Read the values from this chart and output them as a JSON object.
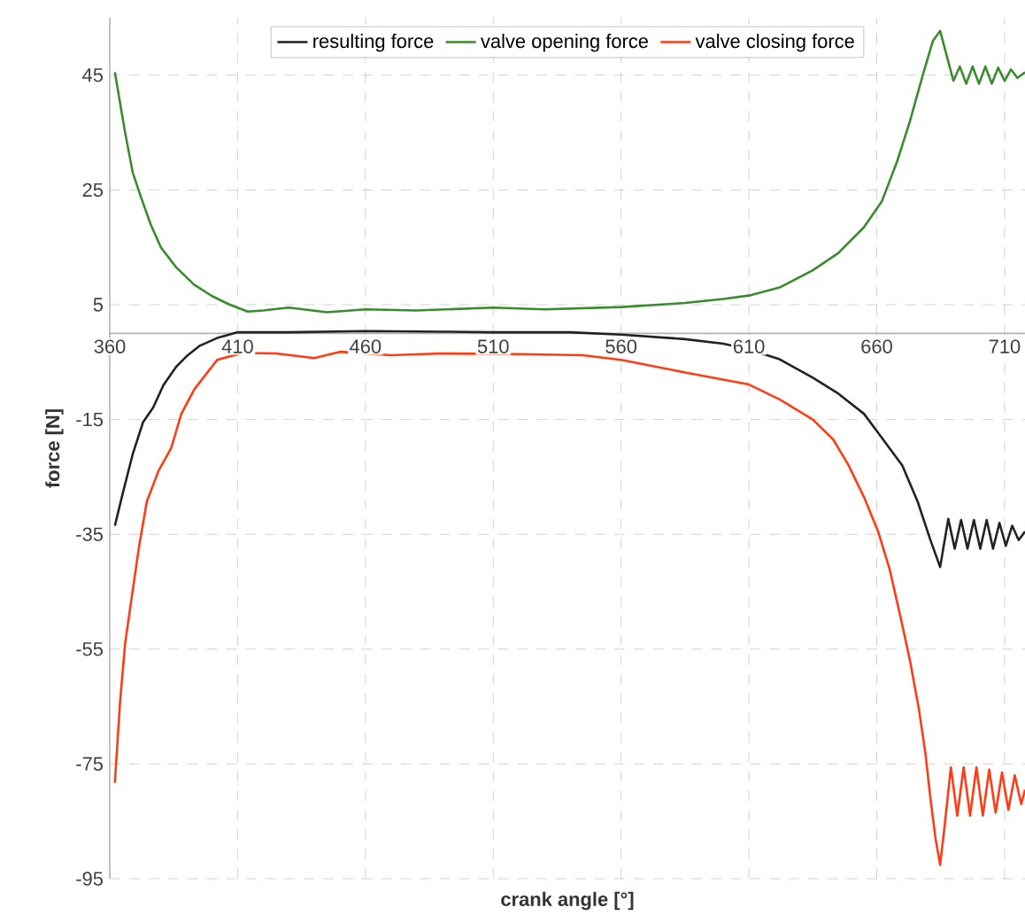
{
  "chart_data": {
    "type": "line",
    "xlabel": "crank angle [°]",
    "ylabel": "force [N]",
    "xlim": [
      360,
      718
    ],
    "ylim": [
      -95,
      55
    ],
    "xticks": [
      360,
      410,
      460,
      510,
      560,
      610,
      660,
      710
    ],
    "yticks": [
      45,
      25,
      5,
      -15,
      -35,
      -55,
      -75,
      -95
    ],
    "grid": true,
    "legend": "top",
    "marker": "none",
    "line_style": "solid",
    "series": [
      {
        "name": "resulting force",
        "color": "#222222",
        "x": [
          362,
          365,
          369,
          373,
          377,
          381,
          386,
          390,
          395,
          402,
          410,
          430,
          460,
          490,
          510,
          540,
          560,
          585,
          600,
          610,
          622,
          635,
          645,
          655,
          660,
          665,
          670,
          676,
          681,
          684.8,
          688,
          690.5,
          693,
          695.5,
          698,
          700.5,
          703,
          705.5,
          708,
          710.5,
          713,
          715.5,
          718
        ],
        "values": [
          -33.5,
          -28,
          -21,
          -15.5,
          -12.9,
          -9,
          -5.8,
          -4,
          -2.2,
          -0.8,
          0.2,
          0.2,
          0.4,
          0.3,
          0.2,
          0.2,
          -0.2,
          -1,
          -1.8,
          -2.8,
          -4.5,
          -7.7,
          -10.5,
          -14,
          -17,
          -20,
          -23,
          -29.3,
          -36,
          -40.7,
          -32.3,
          -37.5,
          -32.5,
          -37.5,
          -32.5,
          -37.5,
          -32.5,
          -37.5,
          -33,
          -37,
          -33.5,
          -36,
          -34.5
        ]
      },
      {
        "name": "valve opening force",
        "color": "#3a8a2e",
        "x": [
          362,
          366,
          369,
          372,
          376,
          380,
          386,
          393,
          400,
          407,
          414,
          420,
          430,
          445,
          460,
          480,
          510,
          530,
          560,
          585,
          600,
          610,
          622,
          635,
          645,
          655,
          662,
          668,
          673,
          678,
          682,
          684.8,
          687,
          690,
          692.5,
          695,
          697.5,
          700,
          702.5,
          705,
          707.5,
          710,
          712.5,
          715,
          718
        ],
        "values": [
          45.5,
          35,
          28,
          24,
          19,
          15,
          11.5,
          8.5,
          6.5,
          5,
          3.8,
          4,
          4.5,
          3.7,
          4.2,
          4,
          4.5,
          4.2,
          4.6,
          5.3,
          6,
          6.6,
          8,
          11,
          14,
          18.5,
          23,
          30,
          37,
          45,
          51,
          52.7,
          49,
          44,
          46.5,
          43.5,
          46.5,
          43.5,
          46.5,
          43.5,
          46.3,
          44,
          46,
          44.5,
          45.5
        ]
      },
      {
        "name": "valve closing force",
        "color": "#ff3c14",
        "x": [
          362,
          364,
          366,
          369,
          371.5,
          374.5,
          379,
          384,
          388,
          393,
          402,
          412,
          425,
          440,
          450,
          470,
          490,
          520,
          545,
          560,
          585,
          610,
          622,
          635,
          643,
          649,
          655,
          660.6,
          665,
          669.6,
          673,
          676.5,
          679,
          681,
          683,
          684.8,
          686.5,
          689,
          691.5,
          694,
          696.5,
          699,
          701.5,
          704,
          706.5,
          709,
          711.5,
          714,
          716.5,
          718
        ],
        "values": [
          -78.3,
          -64.4,
          -54,
          -44.7,
          -37,
          -29.3,
          -24,
          -20,
          -14,
          -9.8,
          -4.6,
          -3.4,
          -3.5,
          -4.3,
          -3.2,
          -3.8,
          -3.5,
          -3.6,
          -3.8,
          -4.6,
          -6.8,
          -8.9,
          -11.5,
          -15,
          -18.5,
          -23,
          -28.5,
          -34.6,
          -41,
          -50,
          -57,
          -65.5,
          -73,
          -81,
          -88,
          -92.6,
          -86,
          -75.6,
          -84,
          -75.6,
          -84,
          -75.6,
          -84,
          -76,
          -83.5,
          -76.5,
          -83,
          -77,
          -82,
          -79.5
        ]
      }
    ]
  }
}
